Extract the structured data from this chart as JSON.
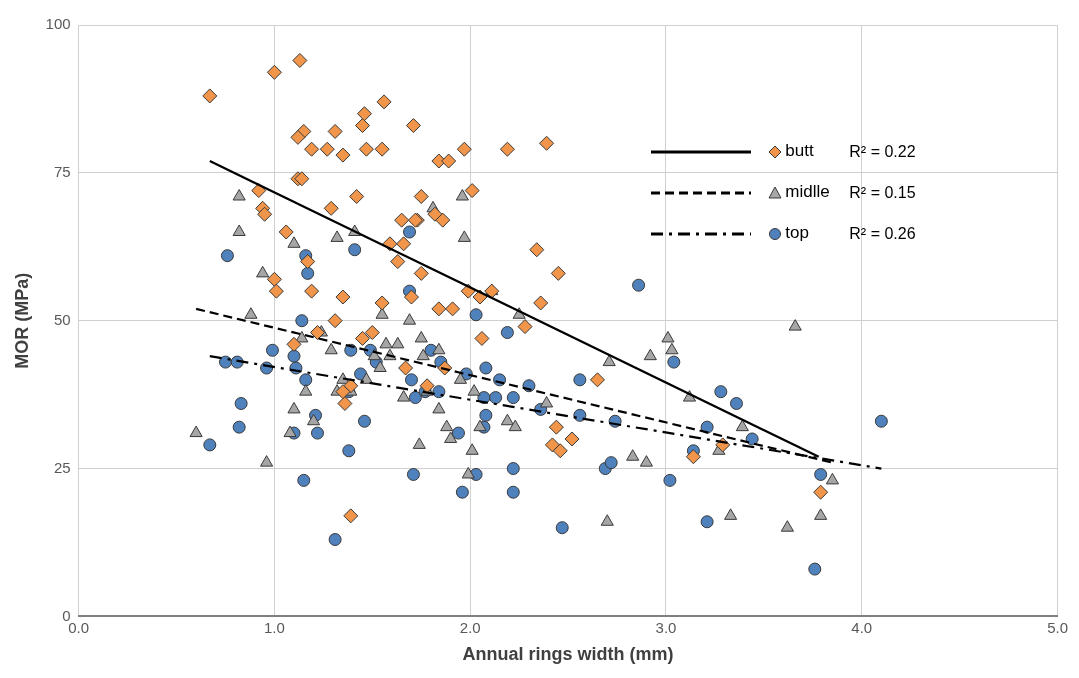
{
  "chart_data": {
    "type": "scatter",
    "xlabel": "Annual rings width (mm)",
    "ylabel": "MOR (MPa)",
    "xlim": [
      0,
      5
    ],
    "xticks": [
      {
        "value": 0,
        "label": "0.0"
      },
      {
        "value": 1,
        "label": "1.0"
      },
      {
        "value": 2,
        "label": "2.0"
      },
      {
        "value": 3,
        "label": "3.0"
      },
      {
        "value": 4,
        "label": "4.0"
      },
      {
        "value": 5,
        "label": "5.0"
      }
    ],
    "ylim": [
      0,
      100
    ],
    "yticks": [
      0,
      25,
      50,
      75,
      100
    ],
    "grid": true,
    "legend": "top right",
    "annotations": [
      "R² = 0.22",
      "R² = 0.15",
      "R² = 0.26"
    ],
    "series": [
      {
        "name": "butt",
        "type": "scatter",
        "marker": "diamond",
        "color": "#f0954a",
        "x": [
          0.67,
          1.0,
          1.13,
          1.15,
          1.12,
          1.19,
          1.27,
          1.31,
          1.35,
          1.45,
          1.46,
          1.47,
          1.55,
          1.56,
          1.71,
          1.73,
          1.75,
          1.82,
          1.84,
          1.89,
          1.86,
          1.97,
          2.01,
          2.19,
          2.39,
          0.92,
          0.94,
          0.95,
          1.0,
          1.01,
          1.06,
          1.1,
          1.12,
          1.14,
          1.17,
          1.19,
          1.22,
          1.29,
          1.31,
          1.35,
          1.36,
          1.39,
          1.39,
          1.42,
          1.45,
          1.5,
          1.55,
          1.59,
          1.63,
          1.65,
          1.66,
          1.7,
          1.72,
          1.75,
          1.78,
          1.84,
          1.91,
          1.99,
          2.05,
          2.06,
          2.11,
          2.28,
          2.34,
          2.36,
          2.42,
          2.44,
          2.45,
          2.46,
          2.52,
          2.65,
          3.14,
          3.29,
          3.79,
          1.87,
          1.35,
          1.67
        ],
        "values": [
          88,
          92,
          94,
          82,
          81,
          79,
          79,
          82,
          78,
          83,
          85,
          79,
          79,
          87,
          83,
          67,
          71,
          68,
          77,
          77,
          67,
          79,
          72,
          79,
          80,
          72,
          69,
          68,
          57,
          55,
          65,
          46,
          74,
          74,
          60,
          55,
          48,
          69,
          50,
          54,
          36,
          17,
          39,
          71,
          47,
          48,
          53,
          63,
          60,
          67,
          63,
          54,
          67,
          58,
          39,
          52,
          52,
          55,
          54,
          47,
          55,
          49,
          62,
          53,
          29,
          32,
          58,
          28,
          30,
          40,
          27,
          29,
          21,
          42,
          38,
          42
        ]
      },
      {
        "name": "midlle",
        "type": "scatter",
        "marker": "triangle",
        "color": "#a6a6a6",
        "x": [
          0.6,
          0.82,
          0.82,
          0.88,
          0.94,
          0.96,
          1.08,
          1.1,
          1.1,
          1.14,
          1.16,
          1.2,
          1.24,
          1.29,
          1.32,
          1.32,
          1.35,
          1.39,
          1.41,
          1.47,
          1.51,
          1.54,
          1.55,
          1.57,
          1.59,
          1.63,
          1.66,
          1.69,
          1.74,
          1.75,
          1.76,
          1.78,
          1.81,
          1.84,
          1.84,
          1.88,
          1.9,
          1.95,
          1.96,
          1.97,
          1.99,
          2.01,
          2.02,
          2.05,
          2.11,
          2.19,
          2.25,
          2.23,
          2.39,
          2.71,
          2.7,
          2.83,
          2.9,
          2.92,
          3.01,
          3.03,
          3.12,
          3.27,
          3.33,
          3.39,
          3.62,
          3.66,
          3.79,
          3.85
        ],
        "values": [
          31,
          71,
          65,
          51,
          58,
          26,
          31,
          35,
          63,
          47,
          38,
          33,
          48,
          45,
          64,
          38,
          40,
          38,
          65,
          40,
          44,
          42,
          51,
          46,
          44,
          46,
          37,
          50,
          29,
          47,
          44,
          38,
          69,
          45,
          35,
          32,
          30,
          40,
          71,
          64,
          24,
          28,
          38,
          32,
          55,
          33,
          51,
          32,
          36,
          43,
          16,
          27,
          26,
          44,
          47,
          45,
          37,
          28,
          17,
          32,
          15,
          49,
          17,
          23
        ]
      },
      {
        "name": "top",
        "type": "scatter",
        "marker": "circle",
        "color": "#4f81bd",
        "x": [
          0.67,
          0.76,
          0.75,
          0.81,
          0.83,
          0.82,
          0.96,
          0.99,
          1.1,
          1.11,
          1.1,
          1.14,
          1.15,
          1.16,
          1.17,
          1.16,
          1.21,
          1.22,
          1.31,
          1.38,
          1.38,
          1.39,
          1.41,
          1.44,
          1.46,
          1.49,
          1.52,
          1.69,
          1.69,
          1.7,
          1.71,
          1.72,
          1.77,
          1.8,
          1.84,
          1.85,
          1.94,
          1.96,
          1.98,
          2.03,
          2.03,
          2.07,
          2.07,
          2.08,
          2.08,
          2.13,
          2.15,
          2.19,
          2.22,
          2.22,
          2.22,
          2.3,
          2.36,
          2.47,
          2.56,
          2.56,
          2.69,
          2.72,
          2.74,
          2.86,
          3.02,
          3.04,
          3.14,
          3.21,
          3.21,
          3.28,
          3.36,
          3.44,
          3.76,
          3.79,
          4.1
        ],
        "values": [
          29,
          61,
          43,
          43,
          36,
          32,
          42,
          45,
          44,
          42,
          31,
          50,
          23,
          61,
          58,
          40,
          34,
          31,
          13,
          28,
          38,
          45,
          62,
          41,
          33,
          45,
          43,
          65,
          55,
          40,
          24,
          37,
          38,
          45,
          38,
          43,
          31,
          21,
          41,
          51,
          24,
          32,
          37,
          34,
          42,
          37,
          40,
          48,
          37,
          25,
          21,
          39,
          35,
          15,
          40,
          34,
          25,
          26,
          33,
          56,
          23,
          43,
          28,
          32,
          16,
          38,
          36,
          30,
          8,
          24,
          33
        ]
      },
      {
        "type": "line",
        "marker": "none",
        "line_style": "solid",
        "color": "#000000",
        "x": [
          0.67,
          3.78
        ],
        "values": [
          77,
          27
        ]
      },
      {
        "type": "line",
        "marker": "none",
        "line_style": "dashed",
        "color": "#000000",
        "x": [
          0.6,
          3.85
        ],
        "values": [
          52,
          26
        ]
      },
      {
        "type": "line",
        "marker": "none",
        "line_style": "dashdot",
        "color": "#000000",
        "x": [
          0.67,
          4.1
        ],
        "values": [
          44,
          25
        ]
      }
    ]
  }
}
